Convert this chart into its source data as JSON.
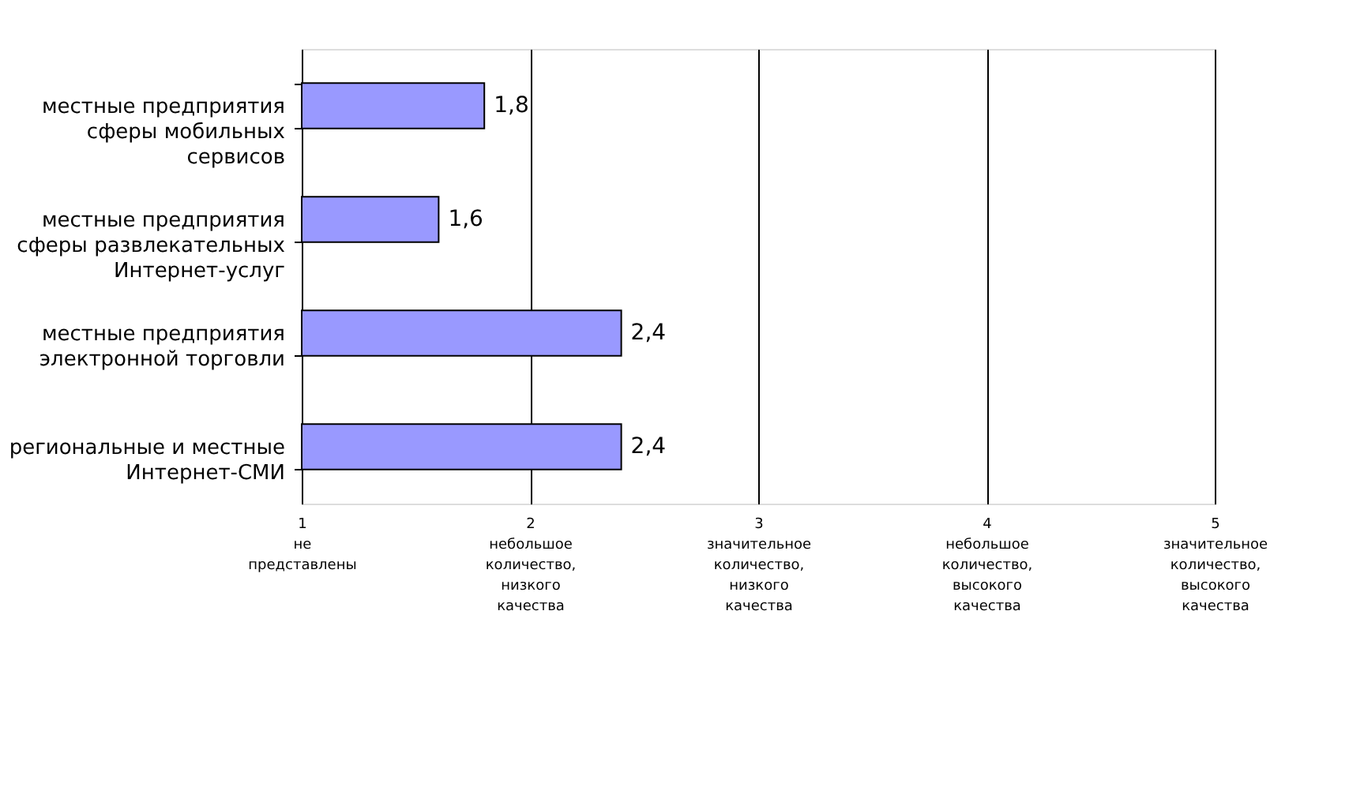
{
  "chart_data": {
    "type": "bar",
    "orientation": "horizontal",
    "categories": [
      "местные предприятия\nсферы мобильных\nсервисов",
      "местные предприятия\nсферы развлекательных\nИнтернет-услуг",
      "местные предприятия\nэлектронной торговли",
      "региональные и местные\nИнтернет-СМИ"
    ],
    "values": [
      1.8,
      1.6,
      2.4,
      2.4
    ],
    "value_labels": [
      "1,8",
      "1,6",
      "2,4",
      "2,4"
    ],
    "color": "#9999ff",
    "xlim": [
      1,
      5
    ],
    "xticks": [
      {
        "value": 1,
        "label": "1\n\nне\nпредставлены"
      },
      {
        "value": 2,
        "label": "2\n\nнебольшое\nколичество,\nнизкого\nкачества"
      },
      {
        "value": 3,
        "label": "3\n\nзначительное\nколичество,\nнизкого\nкачества"
      },
      {
        "value": 4,
        "label": "4\n\nнебольшое\nколичество,\nвысокого\nкачества"
      },
      {
        "value": 5,
        "label": "5\n\nзначительное\nколичество,\nвысокого\nкачества"
      }
    ],
    "grid": "x"
  }
}
